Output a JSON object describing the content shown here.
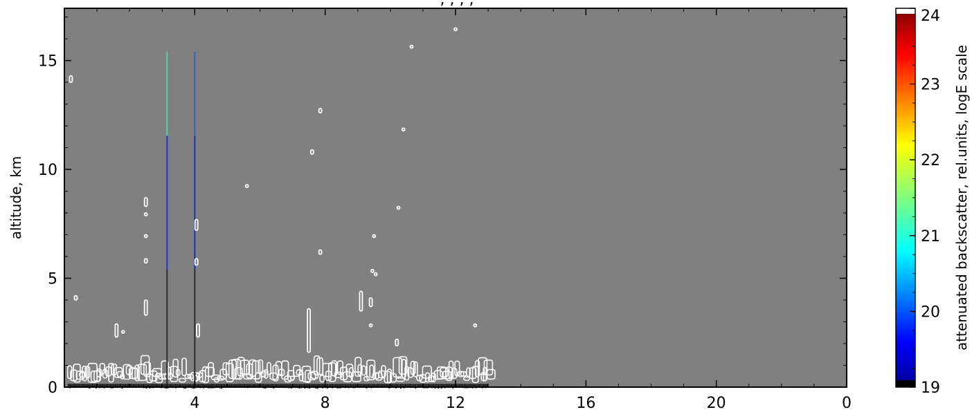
{
  "chart_data": {
    "type": "heatmap",
    "title": ", , , , ",
    "xlabel": "",
    "ylabel": "altitude, km",
    "x_tick_labels": [
      "4",
      "8",
      "12",
      "16",
      "20",
      "0"
    ],
    "y_ticks": [
      0,
      5,
      10,
      15
    ],
    "ylim": [
      0,
      17.4
    ],
    "x_range_hours": [
      0,
      24
    ],
    "grid": false,
    "background_color": "#808080",
    "colorbar": {
      "label": "attenuated backscatter, rel.units, logE scale",
      "ticks": [
        19,
        20,
        21,
        22,
        23,
        24
      ],
      "range": [
        19,
        24
      ],
      "colormap": "jet"
    },
    "profiles": [
      {
        "x": 3.15,
        "y_top": 15.4,
        "color_top": "#4fd6a0",
        "color_mid": "#2233cc"
      },
      {
        "x": 4.0,
        "y_top": 15.4,
        "color_top": "#3a5fd0",
        "color_mid": "#1d2fb0"
      }
    ],
    "data_extent_x": [
      0.1,
      13.0
    ],
    "cloud_contours": [
      {
        "x": 0.2,
        "y": [
          14.0,
          14.3
        ]
      },
      {
        "x": 0.35,
        "y": [
          4.0,
          4.2
        ]
      },
      {
        "x": 1.6,
        "y": [
          2.3,
          2.9
        ]
      },
      {
        "x": 1.8,
        "y": [
          2.5,
          2.6
        ]
      },
      {
        "x": 2.5,
        "y": [
          3.3,
          4.0
        ]
      },
      {
        "x": 2.5,
        "y": [
          5.7,
          5.9
        ]
      },
      {
        "x": 2.5,
        "y": [
          6.9,
          7.0
        ]
      },
      {
        "x": 2.5,
        "y": [
          7.9,
          8.0
        ]
      },
      {
        "x": 2.5,
        "y": [
          8.3,
          8.7
        ]
      },
      {
        "x": 4.05,
        "y": [
          7.2,
          7.7
        ]
      },
      {
        "x": 4.05,
        "y": [
          5.6,
          5.9
        ]
      },
      {
        "x": 4.1,
        "y": [
          2.3,
          2.9
        ]
      },
      {
        "x": 5.6,
        "y": [
          9.2,
          9.3
        ]
      },
      {
        "x": 7.5,
        "y": [
          1.6,
          3.6
        ]
      },
      {
        "x": 7.6,
        "y": [
          10.7,
          10.9
        ]
      },
      {
        "x": 7.85,
        "y": [
          12.6,
          12.8
        ]
      },
      {
        "x": 7.85,
        "y": [
          6.1,
          6.3
        ]
      },
      {
        "x": 9.1,
        "y": [
          3.5,
          4.4
        ]
      },
      {
        "x": 9.4,
        "y": [
          3.7,
          4.1
        ]
      },
      {
        "x": 9.45,
        "y": [
          5.3,
          5.4
        ]
      },
      {
        "x": 9.55,
        "y": [
          5.15,
          5.25
        ]
      },
      {
        "x": 9.5,
        "y": [
          6.9,
          7.0
        ]
      },
      {
        "x": 9.4,
        "y": [
          2.8,
          2.9
        ]
      },
      {
        "x": 10.2,
        "y": [
          1.9,
          2.2
        ]
      },
      {
        "x": 10.25,
        "y": [
          8.2,
          8.3
        ]
      },
      {
        "x": 10.4,
        "y": [
          11.8,
          11.9
        ]
      },
      {
        "x": 10.65,
        "y": [
          15.6,
          15.7
        ]
      },
      {
        "x": 12.0,
        "y": [
          16.4,
          16.5
        ]
      },
      {
        "x": 12.6,
        "y": [
          2.8,
          2.9
        ]
      },
      {
        "x": 12.9,
        "y": [
          0.3,
          0.9
        ]
      }
    ],
    "low_cloud_layer": {
      "x": [
        0.1,
        13.0
      ],
      "y": [
        0.2,
        1.9
      ]
    }
  }
}
